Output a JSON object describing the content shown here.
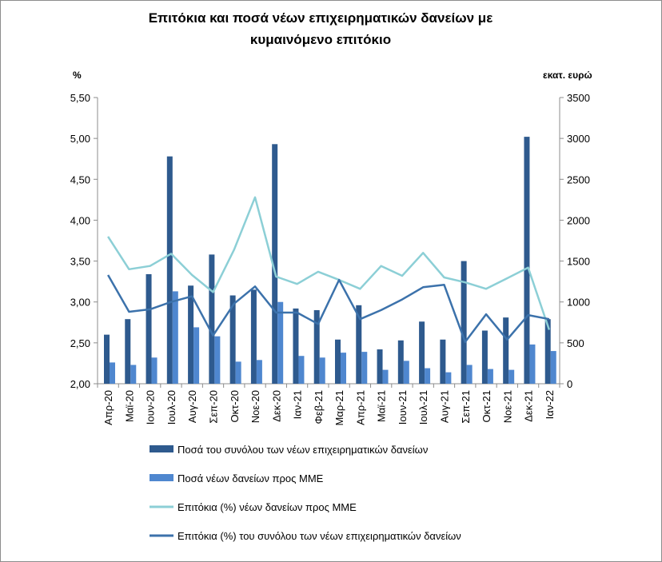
{
  "chart_data": {
    "type": "bar",
    "title_line1": "Επιτόκια και ποσά νέων επιχειρηματικών δανείων με",
    "title_line2": "κυμαινόμενο επιτόκιο",
    "ylabel_left": "%",
    "ylabel_right": "εκατ. ευρώ",
    "categories": [
      "Απρ-20",
      "Μαϊ-20",
      "Ιουν-20",
      "Ιουλ-20",
      "Αυγ-20",
      "Σεπ-20",
      "Οκτ-20",
      "Νοε-20",
      "Δεκ-20",
      "Ιαν-21",
      "Φεβ-21",
      "Μαρ-21",
      "Απρ-21",
      "Μαϊ-21",
      "Ιουν-21",
      "Ιουλ-21",
      "Αυγ-21",
      "Σεπ-21",
      "Οκτ-21",
      "Νοε-21",
      "Δεκ-21",
      "Ιαν-22"
    ],
    "left_ticks": [
      "2,00",
      "2,50",
      "3,00",
      "3,50",
      "4,00",
      "4,50",
      "5,00",
      "5,50"
    ],
    "right_ticks": [
      "0",
      "500",
      "1000",
      "1500",
      "2000",
      "2500",
      "3000",
      "3500"
    ],
    "ylim_left": [
      2.0,
      5.5
    ],
    "ylim_right": [
      0,
      3500
    ],
    "series": [
      {
        "name": "Ποσά του συνόλου των νέων επιχειρηματικών δανείων",
        "kind": "bar",
        "axis": "right",
        "color": "#2e5a8e",
        "values": [
          600,
          790,
          1340,
          2780,
          1200,
          1580,
          1080,
          1150,
          2930,
          920,
          900,
          540,
          960,
          420,
          530,
          760,
          540,
          1500,
          650,
          810,
          3020,
          790
        ]
      },
      {
        "name": "Ποσά νέων δανείων προς ΜΜΕ",
        "kind": "bar",
        "axis": "right",
        "color": "#4f87cf",
        "values": [
          260,
          230,
          320,
          1130,
          690,
          580,
          270,
          290,
          1000,
          340,
          320,
          380,
          390,
          170,
          280,
          190,
          140,
          230,
          180,
          170,
          480,
          400
        ]
      },
      {
        "name": "Επιτόκια (%) νέων δανείων προς ΜΜΕ",
        "kind": "line",
        "axis": "left",
        "color": "#8ccfd6",
        "values": [
          3.8,
          3.4,
          3.44,
          3.59,
          3.33,
          3.12,
          3.64,
          4.28,
          3.31,
          3.22,
          3.37,
          3.27,
          3.16,
          3.44,
          3.32,
          3.6,
          3.3,
          3.24,
          3.16,
          3.29,
          3.42,
          2.66
        ]
      },
      {
        "name": "Επιτόκια (%) του συνόλου των νέων επιχειρηματικών δανείων",
        "kind": "line",
        "axis": "left",
        "color": "#3c72ab",
        "values": [
          3.33,
          2.88,
          2.91,
          3.0,
          3.07,
          2.59,
          2.98,
          3.19,
          2.87,
          2.87,
          2.73,
          3.27,
          2.79,
          2.9,
          3.03,
          3.18,
          3.21,
          2.51,
          2.85,
          2.54,
          2.84,
          2.79
        ]
      }
    ],
    "legend_position": "bottom",
    "grid": false
  }
}
